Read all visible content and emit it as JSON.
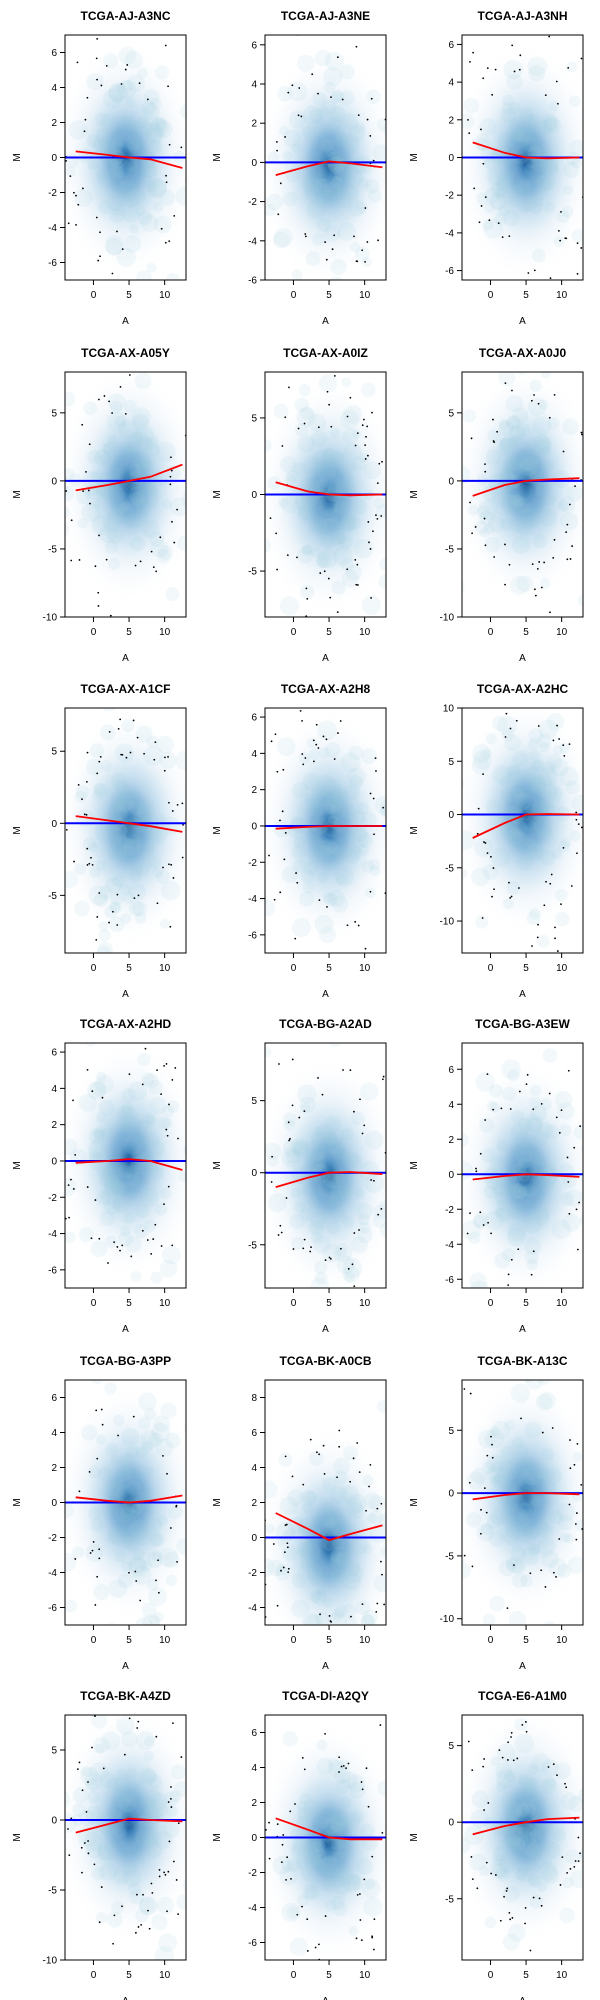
{
  "figure": {
    "xlabel": "A",
    "ylabel": "M",
    "colors": {
      "density": "#08519c",
      "baseline": "#0000ff",
      "loess": "#ff0000",
      "frame": "#000000"
    }
  },
  "chart_data": [
    {
      "type": "scatter",
      "title": "TCGA-AJ-A3NC",
      "xlim": [
        -4,
        13
      ],
      "ylim": [
        -7,
        7
      ],
      "yticks": [
        -6,
        -4,
        -2,
        0,
        2,
        4,
        6
      ],
      "xticks": [
        0,
        5,
        10
      ],
      "loess": [
        [
          -2.5,
          0.35
        ],
        [
          2,
          0.15
        ],
        [
          5,
          0
        ],
        [
          8,
          -0.1
        ],
        [
          12.5,
          -0.6
        ]
      ],
      "baseline": 0,
      "center": [
        4.5,
        -0.1
      ]
    },
    {
      "type": "scatter",
      "title": "TCGA-AJ-A3NE",
      "xlim": [
        -4,
        13
      ],
      "ylim": [
        -6,
        6.5
      ],
      "yticks": [
        -6,
        -4,
        -2,
        0,
        2,
        4,
        6
      ],
      "xticks": [
        0,
        5,
        10
      ],
      "loess": [
        [
          -2.5,
          -0.65
        ],
        [
          2,
          -0.2
        ],
        [
          5,
          0.05
        ],
        [
          8,
          -0.05
        ],
        [
          12.5,
          -0.25
        ]
      ],
      "baseline": 0,
      "center": [
        5,
        -0.2
      ]
    },
    {
      "type": "scatter",
      "title": "TCGA-AJ-A3NH",
      "xlim": [
        -4,
        13
      ],
      "ylim": [
        -6.5,
        6.5
      ],
      "yticks": [
        -6,
        -4,
        -2,
        0,
        2,
        4,
        6
      ],
      "xticks": [
        0,
        5,
        10
      ],
      "loess": [
        [
          -2.5,
          0.8
        ],
        [
          2,
          0.25
        ],
        [
          5,
          0
        ],
        [
          8,
          -0.05
        ],
        [
          12.5,
          0
        ]
      ],
      "baseline": 0,
      "center": [
        5,
        -0.2
      ]
    },
    {
      "type": "scatter",
      "title": "TCGA-AX-A05Y",
      "xlim": [
        -4,
        13
      ],
      "ylim": [
        -10,
        8
      ],
      "yticks": [
        -10,
        -5,
        0,
        5
      ],
      "xticks": [
        0,
        5,
        10
      ],
      "loess": [
        [
          -2.5,
          -0.7
        ],
        [
          2,
          -0.3
        ],
        [
          5,
          0
        ],
        [
          8,
          0.3
        ],
        [
          12.5,
          1.2
        ]
      ],
      "baseline": 0,
      "center": [
        5,
        -0.3
      ]
    },
    {
      "type": "scatter",
      "title": "TCGA-AX-A0IZ",
      "xlim": [
        -4,
        13
      ],
      "ylim": [
        -8,
        8
      ],
      "yticks": [
        -5,
        0,
        5
      ],
      "xticks": [
        0,
        5,
        10
      ],
      "loess": [
        [
          -2.5,
          0.8
        ],
        [
          2,
          0.2
        ],
        [
          5,
          0
        ],
        [
          8,
          -0.05
        ],
        [
          12.5,
          0
        ]
      ],
      "baseline": 0,
      "center": [
        5,
        -0.2
      ]
    },
    {
      "type": "scatter",
      "title": "TCGA-AX-A0J0",
      "xlim": [
        -4,
        13
      ],
      "ylim": [
        -10,
        8
      ],
      "yticks": [
        -10,
        -5,
        0,
        5
      ],
      "xticks": [
        0,
        5,
        10
      ],
      "loess": [
        [
          -2.5,
          -1.1
        ],
        [
          2,
          -0.3
        ],
        [
          5,
          0
        ],
        [
          8,
          0.1
        ],
        [
          12.5,
          0.2
        ]
      ],
      "baseline": 0,
      "center": [
        5,
        -0.3
      ]
    },
    {
      "type": "scatter",
      "title": "TCGA-AX-A1CF",
      "xlim": [
        -4,
        13
      ],
      "ylim": [
        -9,
        8
      ],
      "yticks": [
        -5,
        0,
        5
      ],
      "xticks": [
        0,
        5,
        10
      ],
      "loess": [
        [
          -2.5,
          0.5
        ],
        [
          2,
          0.2
        ],
        [
          5,
          0
        ],
        [
          8,
          -0.2
        ],
        [
          12.5,
          -0.6
        ]
      ],
      "baseline": 0,
      "center": [
        5,
        -0.3
      ]
    },
    {
      "type": "scatter",
      "title": "TCGA-AX-A2H8",
      "xlim": [
        -4,
        13
      ],
      "ylim": [
        -7,
        6.5
      ],
      "yticks": [
        -6,
        -4,
        -2,
        0,
        2,
        4,
        6
      ],
      "xticks": [
        0,
        5,
        10
      ],
      "loess": [
        [
          -2.5,
          -0.15
        ],
        [
          2,
          -0.05
        ],
        [
          5,
          0
        ],
        [
          8,
          0
        ],
        [
          12.5,
          0
        ]
      ],
      "baseline": 0,
      "center": [
        5,
        -0.1
      ]
    },
    {
      "type": "scatter",
      "title": "TCGA-AX-A2HC",
      "xlim": [
        -4,
        13
      ],
      "ylim": [
        -13,
        10
      ],
      "yticks": [
        -10,
        -5,
        0,
        5,
        10
      ],
      "xticks": [
        0,
        5,
        10
      ],
      "loess": [
        [
          -2.5,
          -2.2
        ],
        [
          2,
          -0.8
        ],
        [
          5,
          0
        ],
        [
          8,
          0.05
        ],
        [
          12.5,
          0
        ]
      ],
      "baseline": 0,
      "center": [
        5,
        -0.2
      ]
    },
    {
      "type": "scatter",
      "title": "TCGA-AX-A2HD",
      "xlim": [
        -4,
        13
      ],
      "ylim": [
        -7,
        6.5
      ],
      "yticks": [
        -6,
        -4,
        -2,
        0,
        2,
        4,
        6
      ],
      "xticks": [
        0,
        5,
        10
      ],
      "loess": [
        [
          -2.5,
          -0.1
        ],
        [
          2,
          0
        ],
        [
          5,
          0.1
        ],
        [
          8,
          0
        ],
        [
          12.5,
          -0.5
        ]
      ],
      "baseline": 0,
      "center": [
        5,
        0
      ]
    },
    {
      "type": "scatter",
      "title": "TCGA-BG-A2AD",
      "xlim": [
        -4,
        13
      ],
      "ylim": [
        -8,
        9
      ],
      "yticks": [
        -5,
        0,
        5
      ],
      "xticks": [
        0,
        5,
        10
      ],
      "loess": [
        [
          -2.5,
          -1
        ],
        [
          2,
          -0.35
        ],
        [
          5,
          0
        ],
        [
          8,
          0.05
        ],
        [
          12.5,
          -0.1
        ]
      ],
      "baseline": 0,
      "center": [
        5,
        -0.2
      ]
    },
    {
      "type": "scatter",
      "title": "TCGA-BG-A3EW",
      "xlim": [
        -4,
        13
      ],
      "ylim": [
        -6.5,
        7.5
      ],
      "yticks": [
        -6,
        -4,
        -2,
        0,
        2,
        4,
        6
      ],
      "xticks": [
        0,
        5,
        10
      ],
      "loess": [
        [
          -2.5,
          -0.3
        ],
        [
          2,
          -0.1
        ],
        [
          5,
          0
        ],
        [
          8,
          -0.05
        ],
        [
          12.5,
          -0.15
        ]
      ],
      "baseline": 0,
      "center": [
        5,
        -0.2
      ]
    },
    {
      "type": "scatter",
      "title": "TCGA-BG-A3PP",
      "xlim": [
        -4,
        13
      ],
      "ylim": [
        -7,
        7
      ],
      "yticks": [
        -6,
        -4,
        -2,
        0,
        2,
        4,
        6
      ],
      "xticks": [
        0,
        5,
        10
      ],
      "loess": [
        [
          -2.5,
          0.3
        ],
        [
          2,
          0.1
        ],
        [
          5,
          0
        ],
        [
          8,
          0.1
        ],
        [
          12.5,
          0.4
        ]
      ],
      "baseline": 0,
      "center": [
        5,
        0
      ]
    },
    {
      "type": "scatter",
      "title": "TCGA-BK-A0CB",
      "xlim": [
        -4,
        13
      ],
      "ylim": [
        -5,
        9
      ],
      "yticks": [
        -4,
        -2,
        0,
        2,
        4,
        6,
        8
      ],
      "xticks": [
        0,
        5,
        10
      ],
      "loess": [
        [
          -2.5,
          1.4
        ],
        [
          2,
          0.5
        ],
        [
          5,
          -0.15
        ],
        [
          8,
          0.2
        ],
        [
          12.5,
          0.7
        ]
      ],
      "baseline": 0,
      "center": [
        5,
        -0.5
      ]
    },
    {
      "type": "scatter",
      "title": "TCGA-BK-A13C",
      "xlim": [
        -4,
        13
      ],
      "ylim": [
        -10.5,
        9
      ],
      "yticks": [
        -10,
        -5,
        0,
        5
      ],
      "xticks": [
        0,
        5,
        10
      ],
      "loess": [
        [
          -2.5,
          -0.5
        ],
        [
          2,
          -0.15
        ],
        [
          5,
          0
        ],
        [
          8,
          0
        ],
        [
          12.5,
          -0.1
        ]
      ],
      "baseline": 0,
      "center": [
        5,
        -0.3
      ]
    },
    {
      "type": "scatter",
      "title": "TCGA-BK-A4ZD",
      "xlim": [
        -4,
        13
      ],
      "ylim": [
        -10,
        7.5
      ],
      "yticks": [
        -10,
        -5,
        0,
        5
      ],
      "xticks": [
        0,
        5,
        10
      ],
      "loess": [
        [
          -2.5,
          -0.9
        ],
        [
          2,
          -0.3
        ],
        [
          5,
          0.1
        ],
        [
          8,
          0
        ],
        [
          12.5,
          -0.1
        ]
      ],
      "baseline": 0,
      "center": [
        5,
        -0.3
      ]
    },
    {
      "type": "scatter",
      "title": "TCGA-DI-A2QY",
      "xlim": [
        -4,
        13
      ],
      "ylim": [
        -7,
        7
      ],
      "yticks": [
        -6,
        -4,
        -2,
        0,
        2,
        4,
        6
      ],
      "xticks": [
        0,
        5,
        10
      ],
      "loess": [
        [
          -2.5,
          1.1
        ],
        [
          2,
          0.45
        ],
        [
          5,
          0
        ],
        [
          8,
          -0.1
        ],
        [
          12.5,
          -0.1
        ]
      ],
      "baseline": 0,
      "center": [
        5,
        -0.3
      ]
    },
    {
      "type": "scatter",
      "title": "TCGA-E6-A1M0",
      "xlim": [
        -4,
        13
      ],
      "ylim": [
        -9,
        7
      ],
      "yticks": [
        -5,
        0,
        5
      ],
      "xticks": [
        0,
        5,
        10
      ],
      "loess": [
        [
          -2.5,
          -0.8
        ],
        [
          2,
          -0.25
        ],
        [
          5,
          0
        ],
        [
          8,
          0.2
        ],
        [
          12.5,
          0.3
        ]
      ],
      "baseline": 0,
      "center": [
        5,
        -0.3
      ]
    }
  ]
}
